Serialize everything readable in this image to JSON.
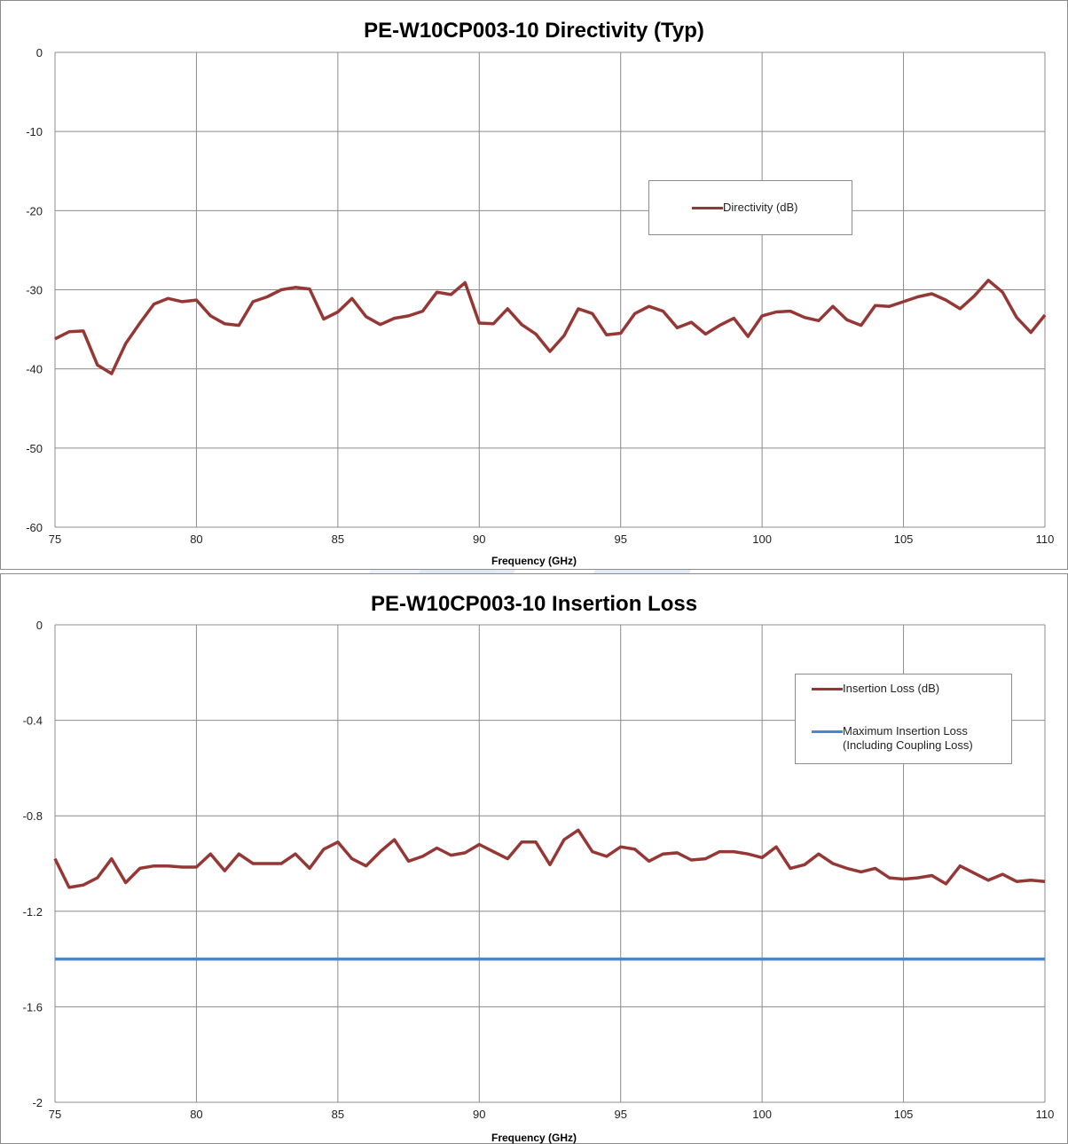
{
  "chart_data": [
    {
      "type": "line",
      "title": "PE-W10CP003-10 Directivity (Typ)",
      "xlabel": "Frequency (GHz)",
      "ylabel": "",
      "xlim": [
        75,
        110
      ],
      "ylim": [
        -60,
        0
      ],
      "x_ticks": [
        75,
        80,
        85,
        90,
        95,
        100,
        105,
        110
      ],
      "y_ticks": [
        0,
        -10,
        -20,
        -30,
        -40,
        -50,
        -60
      ],
      "grid": true,
      "legend_position": "right",
      "series": [
        {
          "name": "Directivity (dB)",
          "color": "#953735",
          "points": [
            [
              75,
              -36.2
            ],
            [
              75.5,
              -35.3
            ],
            [
              76,
              -35.2
            ],
            [
              76.5,
              -39.5
            ],
            [
              77,
              -40.6
            ],
            [
              77.5,
              -36.8
            ],
            [
              78,
              -34.2
            ],
            [
              78.5,
              -31.8
            ],
            [
              79,
              -31.1
            ],
            [
              79.5,
              -31.5
            ],
            [
              80,
              -31.3
            ],
            [
              80.5,
              -33.3
            ],
            [
              81,
              -34.3
            ],
            [
              81.5,
              -34.5
            ],
            [
              82,
              -31.5
            ],
            [
              82.5,
              -30.9
            ],
            [
              83,
              -30
            ],
            [
              83.5,
              -29.7
            ],
            [
              84,
              -29.9
            ],
            [
              84.5,
              -33.7
            ],
            [
              85,
              -32.8
            ],
            [
              85.5,
              -31.1
            ],
            [
              86,
              -33.4
            ],
            [
              86.5,
              -34.4
            ],
            [
              87,
              -33.6
            ],
            [
              87.5,
              -33.3
            ],
            [
              88,
              -32.7
            ],
            [
              88.5,
              -30.3
            ],
            [
              89,
              -30.6
            ],
            [
              89.5,
              -29.1
            ],
            [
              90,
              -34.2
            ],
            [
              90.5,
              -34.3
            ],
            [
              91,
              -32.4
            ],
            [
              91.5,
              -34.4
            ],
            [
              92,
              -35.6
            ],
            [
              92.5,
              -37.8
            ],
            [
              93,
              -35.8
            ],
            [
              93.5,
              -32.4
            ],
            [
              94,
              -33
            ],
            [
              94.5,
              -35.7
            ],
            [
              95,
              -35.5
            ],
            [
              95.5,
              -33
            ],
            [
              96,
              -32.1
            ],
            [
              96.5,
              -32.7
            ],
            [
              97,
              -34.8
            ],
            [
              97.5,
              -34.1
            ],
            [
              98,
              -35.6
            ],
            [
              98.5,
              -34.5
            ],
            [
              99,
              -33.6
            ],
            [
              99.5,
              -35.9
            ],
            [
              100,
              -33.3
            ],
            [
              100.5,
              -32.8
            ],
            [
              101,
              -32.7
            ],
            [
              101.5,
              -33.5
            ],
            [
              102,
              -33.9
            ],
            [
              102.5,
              -32.1
            ],
            [
              103,
              -33.8
            ],
            [
              103.5,
              -34.5
            ],
            [
              104,
              -32
            ],
            [
              104.5,
              -32.1
            ],
            [
              105,
              -31.5
            ],
            [
              105.5,
              -30.9
            ],
            [
              106,
              -30.5
            ],
            [
              106.5,
              -31.3
            ],
            [
              107,
              -32.4
            ],
            [
              107.5,
              -30.8
            ],
            [
              108,
              -28.8
            ],
            [
              108.5,
              -30.3
            ],
            [
              109,
              -33.5
            ],
            [
              109.5,
              -35.4
            ],
            [
              110,
              -33.2
            ]
          ]
        }
      ]
    },
    {
      "type": "line",
      "title": "PE-W10CP003-10 Insertion Loss",
      "xlabel": "Frequency (GHz)",
      "ylabel": "",
      "xlim": [
        75,
        110
      ],
      "ylim": [
        -2,
        0
      ],
      "x_ticks": [
        75,
        80,
        85,
        90,
        95,
        100,
        105,
        110
      ],
      "y_ticks": [
        0,
        -0.4,
        -0.8,
        -1.2,
        -1.6,
        -2
      ],
      "grid": true,
      "legend_position": "top-right",
      "series": [
        {
          "name": "Insertion Loss (dB)",
          "color": "#953735",
          "points": [
            [
              75,
              -0.98
            ],
            [
              75.5,
              -1.1
            ],
            [
              76,
              -1.09
            ],
            [
              76.5,
              -1.06
            ],
            [
              77,
              -0.98
            ],
            [
              77.5,
              -1.08
            ],
            [
              78,
              -1.02
            ],
            [
              78.5,
              -1.01
            ],
            [
              79,
              -1.01
            ],
            [
              79.5,
              -1.015
            ],
            [
              80,
              -1.015
            ],
            [
              80.5,
              -0.96
            ],
            [
              81,
              -1.03
            ],
            [
              81.5,
              -0.96
            ],
            [
              82,
              -1
            ],
            [
              82.5,
              -1
            ],
            [
              83,
              -1
            ],
            [
              83.5,
              -0.96
            ],
            [
              84,
              -1.02
            ],
            [
              84.5,
              -0.94
            ],
            [
              85,
              -0.91
            ],
            [
              85.5,
              -0.98
            ],
            [
              86,
              -1.01
            ],
            [
              86.5,
              -0.95
            ],
            [
              87,
              -0.9
            ],
            [
              87.5,
              -0.99
            ],
            [
              88,
              -0.97
            ],
            [
              88.5,
              -0.935
            ],
            [
              89,
              -0.965
            ],
            [
              89.5,
              -0.955
            ],
            [
              90,
              -0.92
            ],
            [
              90.5,
              -0.95
            ],
            [
              91,
              -0.98
            ],
            [
              91.5,
              -0.91
            ],
            [
              92,
              -0.91
            ],
            [
              92.5,
              -1.005
            ],
            [
              93,
              -0.9
            ],
            [
              93.5,
              -0.86
            ],
            [
              94,
              -0.95
            ],
            [
              94.5,
              -0.97
            ],
            [
              95,
              -0.93
            ],
            [
              95.5,
              -0.94
            ],
            [
              96,
              -0.99
            ],
            [
              96.5,
              -0.96
            ],
            [
              97,
              -0.955
            ],
            [
              97.5,
              -0.985
            ],
            [
              98,
              -0.98
            ],
            [
              98.5,
              -0.95
            ],
            [
              99,
              -0.95
            ],
            [
              99.5,
              -0.96
            ],
            [
              100,
              -0.975
            ],
            [
              100.5,
              -0.93
            ],
            [
              101,
              -1.02
            ],
            [
              101.5,
              -1.005
            ],
            [
              102,
              -0.96
            ],
            [
              102.5,
              -1
            ],
            [
              103,
              -1.02
            ],
            [
              103.5,
              -1.035
            ],
            [
              104,
              -1.02
            ],
            [
              104.5,
              -1.06
            ],
            [
              105,
              -1.065
            ],
            [
              105.5,
              -1.06
            ],
            [
              106,
              -1.05
            ],
            [
              106.5,
              -1.085
            ],
            [
              107,
              -1.01
            ],
            [
              107.5,
              -1.04
            ],
            [
              108,
              -1.07
            ],
            [
              108.5,
              -1.045
            ],
            [
              109,
              -1.075
            ],
            [
              109.5,
              -1.07
            ],
            [
              110,
              -1.075
            ]
          ]
        },
        {
          "name": "Maximum Insertion Loss\n(Including Coupling Loss)",
          "color": "#4a86d0",
          "points": [
            [
              75,
              -1.4
            ],
            [
              110,
              -1.4
            ]
          ]
        }
      ]
    }
  ],
  "colors": {
    "grid": "#8c8c8c",
    "watermark": "#dce8f5"
  }
}
